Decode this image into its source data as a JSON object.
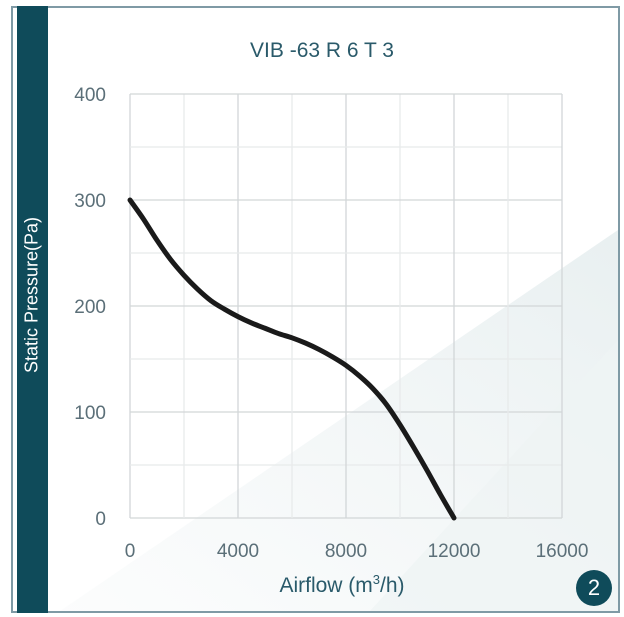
{
  "chart_data": {
    "type": "line",
    "title": "VIB  -63 R 6 T 3",
    "xlabel": "Airflow (m",
    "xlabel_sup": "3",
    "xlabel_suffix": "/h)",
    "ylabel": "Static Pressure(Pa)",
    "xlim": [
      0,
      16000
    ],
    "ylim": [
      0,
      400
    ],
    "x_ticks": [
      "0",
      "4000",
      "8000",
      "12000",
      "16000"
    ],
    "y_ticks": [
      "0",
      "100",
      "200",
      "300",
      "400"
    ],
    "grid": true,
    "legend": "none",
    "series": [
      {
        "color": "#1a1a1a",
        "x": [
          0,
          500,
          1000,
          1500,
          2000,
          2500,
          3000,
          3500,
          4000,
          4500,
          5000,
          5500,
          6000,
          6500,
          7000,
          7500,
          8000,
          8500,
          9000,
          9500,
          10000,
          10500,
          11000,
          11500,
          12000
        ],
        "y": [
          300,
          282,
          262,
          244,
          229,
          216,
          205,
          197,
          190,
          184,
          179,
          174,
          170,
          165,
          159,
          152,
          144,
          134,
          122,
          107,
          88,
          67,
          45,
          22,
          0
        ]
      }
    ]
  },
  "badge": "2"
}
